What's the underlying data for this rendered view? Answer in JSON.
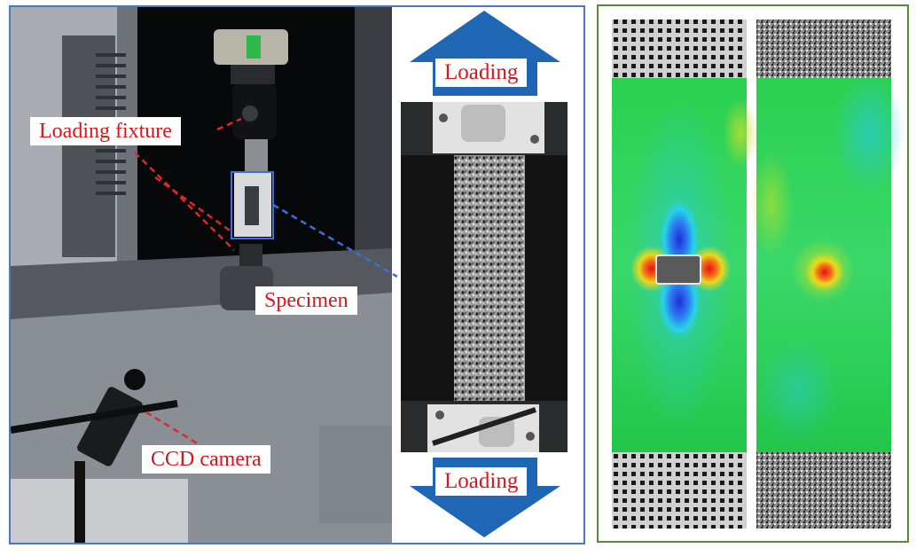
{
  "labels": {
    "loading_fixture": "Loading fixture",
    "specimen": "Specimen",
    "ccd_camera": "CCD camera",
    "loading_top": "Loading",
    "loading_bottom": "Loading"
  },
  "colors": {
    "left_frame": "#4a78c8",
    "right_frame": "#5a8a3a",
    "label_text": "#d8161b",
    "arrow_fill": "#1f66b5",
    "red_dashed": "#e0262a",
    "blue_dashed": "#3c6ee0"
  },
  "icons": [
    "loading-fixture",
    "specimen-box",
    "ccd-camera",
    "up-arrow",
    "down-arrow"
  ]
}
